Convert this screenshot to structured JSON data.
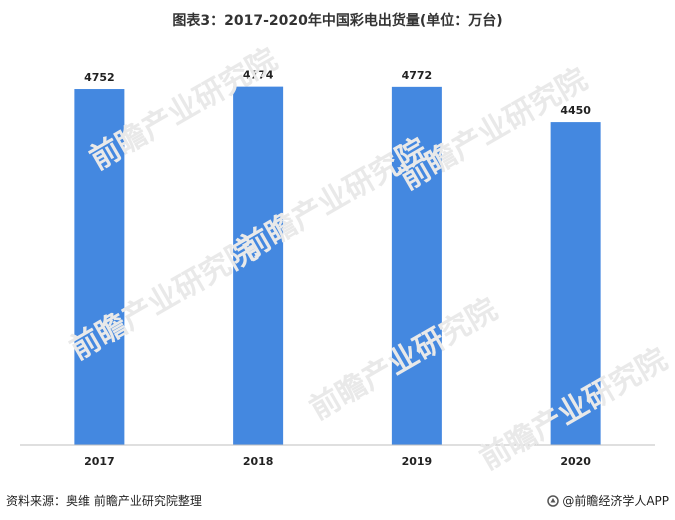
{
  "title": "图表3：2017-2020年中国彩电出货量(单位：万台)",
  "source": "资料来源：奥维 前瞻产业研究院整理",
  "brand": "@前瞻经济学人APP",
  "watermark": "前瞻产业研究院",
  "colors": {
    "bar": "#4488e0",
    "axis": "#bfbfbf",
    "label": "#222222"
  },
  "chart_data": {
    "type": "bar",
    "title": "图表3：2017-2020年中国彩电出货量(单位：万台)",
    "xlabel": "",
    "ylabel": "",
    "categories": [
      "2017",
      "2018",
      "2019",
      "2020"
    ],
    "series": [
      {
        "values": [
          4752,
          4774,
          4772,
          4450
        ]
      }
    ],
    "ylim": [
      1500,
      5200
    ],
    "grid": false,
    "legend": "none"
  }
}
